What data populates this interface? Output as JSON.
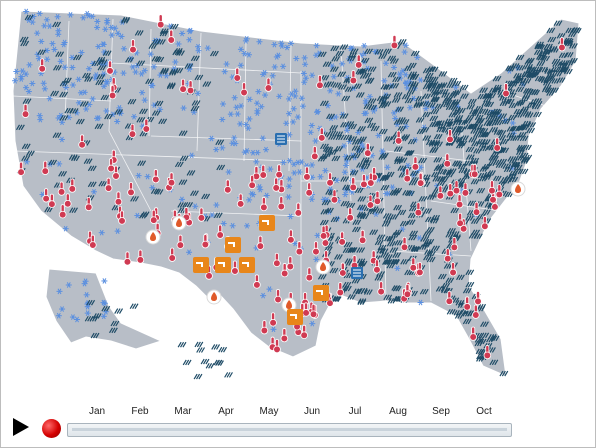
{
  "controls": {
    "play_icon": "play-icon",
    "record_icon": "record-icon",
    "months": [
      "Jan",
      "Feb",
      "Mar",
      "Apr",
      "May",
      "Jun",
      "Jul",
      "Aug",
      "Sep",
      "Oct"
    ],
    "timeline_progress": 0
  },
  "map": {
    "colors": {
      "land": "#b8bec7",
      "borders": "#ffffff",
      "snow": "#5a8fe0",
      "rain": "#1e4b66",
      "heat": "#d03a52",
      "fire": "#e05a2a",
      "drought": "#e8861a",
      "flood": "#2a6fb0"
    },
    "icon_types": [
      "snowflake-icon",
      "rain-icon",
      "thermometer-icon",
      "fire-icon",
      "drought-faucet-icon",
      "flood-icon"
    ]
  }
}
